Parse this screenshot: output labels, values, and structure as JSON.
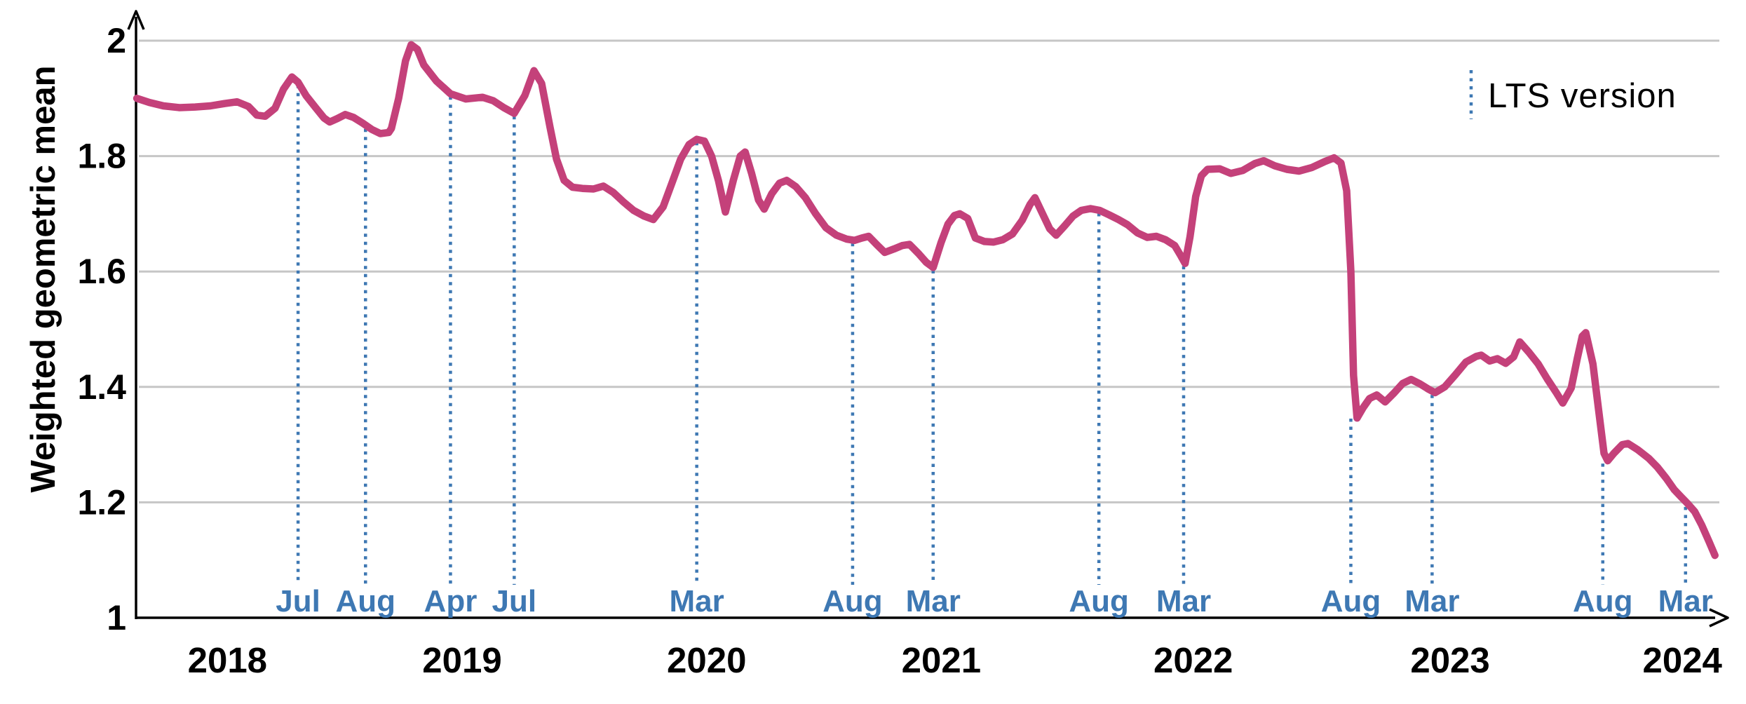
{
  "page": {
    "background": "#ffffff"
  },
  "colors": {
    "line": "#c4417a",
    "lts_blue": "#3e78b3",
    "grid": "#c6c6c6",
    "axis": "#000000",
    "text": "#000000"
  },
  "chart_data": {
    "type": "line",
    "title": "",
    "xlabel": "",
    "ylabel": "Weighted geometric mean",
    "xlim": [
      2017.93,
      2024.32
    ],
    "ylim": [
      1,
      2
    ],
    "grid": "horizontal-on",
    "legend": {
      "label": "LTS version",
      "position": "top-right"
    },
    "y_ticks": [
      {
        "label": "1",
        "value": 1.0
      },
      {
        "label": "1.2",
        "value": 1.2
      },
      {
        "label": "1.4",
        "value": 1.4
      },
      {
        "label": "1.6",
        "value": 1.6
      },
      {
        "label": "1.8",
        "value": 1.8
      },
      {
        "label": "2",
        "value": 2.0
      }
    ],
    "x_ticks": [
      {
        "label": "2018",
        "x": 2018.3
      },
      {
        "label": "2019",
        "x": 2019.25
      },
      {
        "label": "2020",
        "x": 2020.24
      },
      {
        "label": "2021",
        "x": 2021.19
      },
      {
        "label": "2022",
        "x": 2022.21
      },
      {
        "label": "2023",
        "x": 2023.25
      },
      {
        "label": "2024",
        "x": 2024.19
      }
    ],
    "lts_markers": {
      "color": "#3e78b3",
      "items": [
        {
          "label": "Jul",
          "x": 2018.586,
          "top": 1.928
        },
        {
          "label": "Aug",
          "x": 2018.859,
          "top": 1.852
        },
        {
          "label": "Apr",
          "x": 2019.203,
          "top": 1.908
        },
        {
          "label": "Jul",
          "x": 2019.461,
          "top": 1.874
        },
        {
          "label": "Mar",
          "x": 2020.2,
          "top": 1.829
        },
        {
          "label": "Aug",
          "x": 2020.831,
          "top": 1.654
        },
        {
          "label": "Mar",
          "x": 2021.157,
          "top": 1.607
        },
        {
          "label": "Aug",
          "x": 2021.828,
          "top": 1.706
        },
        {
          "label": "Mar",
          "x": 2022.171,
          "top": 1.614
        },
        {
          "label": "Aug",
          "x": 2022.848,
          "top": 1.35
        },
        {
          "label": "Mar",
          "x": 2023.177,
          "top": 1.391
        },
        {
          "label": "Aug",
          "x": 2023.868,
          "top": 1.272
        },
        {
          "label": "Mar",
          "x": 2024.203,
          "top": 1.197
        }
      ]
    },
    "series": [
      {
        "name": "Weighted geometric mean",
        "color": "#c4417a",
        "points": [
          [
            2017.933,
            1.9
          ],
          [
            2017.984,
            1.893
          ],
          [
            2018.041,
            1.887
          ],
          [
            2018.106,
            1.884
          ],
          [
            2018.169,
            1.885
          ],
          [
            2018.231,
            1.887
          ],
          [
            2018.288,
            1.891
          ],
          [
            2018.339,
            1.894
          ],
          [
            2018.385,
            1.886
          ],
          [
            2018.419,
            1.871
          ],
          [
            2018.453,
            1.869
          ],
          [
            2018.493,
            1.883
          ],
          [
            2018.527,
            1.916
          ],
          [
            2018.561,
            1.937
          ],
          [
            2018.586,
            1.928
          ],
          [
            2018.618,
            1.905
          ],
          [
            2018.657,
            1.884
          ],
          [
            2018.691,
            1.866
          ],
          [
            2018.714,
            1.859
          ],
          [
            2018.745,
            1.865
          ],
          [
            2018.777,
            1.872
          ],
          [
            2018.811,
            1.867
          ],
          [
            2018.848,
            1.857
          ],
          [
            2018.885,
            1.846
          ],
          [
            2018.919,
            1.839
          ],
          [
            2018.953,
            1.841
          ],
          [
            2018.964,
            1.848
          ],
          [
            2018.993,
            1.9
          ],
          [
            2019.021,
            1.965
          ],
          [
            2019.044,
            1.993
          ],
          [
            2019.069,
            1.985
          ],
          [
            2019.095,
            1.958
          ],
          [
            2019.146,
            1.93
          ],
          [
            2019.203,
            1.908
          ],
          [
            2019.265,
            1.899
          ],
          [
            2019.333,
            1.902
          ],
          [
            2019.376,
            1.896
          ],
          [
            2019.419,
            1.884
          ],
          [
            2019.461,
            1.874
          ],
          [
            2019.504,
            1.905
          ],
          [
            2019.541,
            1.948
          ],
          [
            2019.572,
            1.926
          ],
          [
            2019.606,
            1.85
          ],
          [
            2019.632,
            1.795
          ],
          [
            2019.663,
            1.758
          ],
          [
            2019.697,
            1.746
          ],
          [
            2019.737,
            1.744
          ],
          [
            2019.782,
            1.743
          ],
          [
            2019.822,
            1.748
          ],
          [
            2019.862,
            1.737
          ],
          [
            2019.902,
            1.721
          ],
          [
            2019.944,
            1.706
          ],
          [
            2019.987,
            1.696
          ],
          [
            2020.024,
            1.69
          ],
          [
            2020.064,
            1.712
          ],
          [
            2020.101,
            1.755
          ],
          [
            2020.135,
            1.795
          ],
          [
            2020.169,
            1.82
          ],
          [
            2020.2,
            1.829
          ],
          [
            2020.231,
            1.826
          ],
          [
            2020.26,
            1.8
          ],
          [
            2020.288,
            1.757
          ],
          [
            2020.316,
            1.703
          ],
          [
            2020.348,
            1.758
          ],
          [
            2020.376,
            1.8
          ],
          [
            2020.396,
            1.807
          ],
          [
            2020.422,
            1.77
          ],
          [
            2020.45,
            1.724
          ],
          [
            2020.473,
            1.708
          ],
          [
            2020.504,
            1.735
          ],
          [
            2020.535,
            1.753
          ],
          [
            2020.564,
            1.758
          ],
          [
            2020.601,
            1.747
          ],
          [
            2020.64,
            1.728
          ],
          [
            2020.68,
            1.701
          ],
          [
            2020.723,
            1.676
          ],
          [
            2020.765,
            1.663
          ],
          [
            2020.808,
            1.656
          ],
          [
            2020.839,
            1.654
          ],
          [
            2020.868,
            1.658
          ],
          [
            2020.896,
            1.661
          ],
          [
            2020.93,
            1.646
          ],
          [
            2020.961,
            1.633
          ],
          [
            2020.998,
            1.639
          ],
          [
            2021.032,
            1.645
          ],
          [
            2021.061,
            1.647
          ],
          [
            2021.098,
            1.631
          ],
          [
            2021.129,
            1.616
          ],
          [
            2021.157,
            1.607
          ],
          [
            2021.189,
            1.65
          ],
          [
            2021.217,
            1.682
          ],
          [
            2021.243,
            1.697
          ],
          [
            2021.265,
            1.7
          ],
          [
            2021.297,
            1.692
          ],
          [
            2021.328,
            1.658
          ],
          [
            2021.365,
            1.652
          ],
          [
            2021.402,
            1.651
          ],
          [
            2021.439,
            1.655
          ],
          [
            2021.478,
            1.665
          ],
          [
            2021.518,
            1.689
          ],
          [
            2021.549,
            1.716
          ],
          [
            2021.569,
            1.728
          ],
          [
            2021.6,
            1.7
          ],
          [
            2021.629,
            1.674
          ],
          [
            2021.655,
            1.663
          ],
          [
            2021.689,
            1.679
          ],
          [
            2021.723,
            1.696
          ],
          [
            2021.757,
            1.706
          ],
          [
            2021.794,
            1.709
          ],
          [
            2021.831,
            1.706
          ],
          [
            2021.87,
            1.698
          ],
          [
            2021.907,
            1.69
          ],
          [
            2021.944,
            1.681
          ],
          [
            2021.984,
            1.667
          ],
          [
            2022.024,
            1.659
          ],
          [
            2022.061,
            1.661
          ],
          [
            2022.098,
            1.655
          ],
          [
            2022.135,
            1.645
          ],
          [
            2022.16,
            1.627
          ],
          [
            2022.177,
            1.614
          ],
          [
            2022.197,
            1.66
          ],
          [
            2022.22,
            1.73
          ],
          [
            2022.243,
            1.766
          ],
          [
            2022.268,
            1.777
          ],
          [
            2022.317,
            1.778
          ],
          [
            2022.362,
            1.77
          ],
          [
            2022.41,
            1.775
          ],
          [
            2022.459,
            1.787
          ],
          [
            2022.495,
            1.792
          ],
          [
            2022.541,
            1.783
          ],
          [
            2022.589,
            1.777
          ],
          [
            2022.638,
            1.774
          ],
          [
            2022.689,
            1.78
          ],
          [
            2022.74,
            1.79
          ],
          [
            2022.78,
            1.797
          ],
          [
            2022.808,
            1.788
          ],
          [
            2022.831,
            1.74
          ],
          [
            2022.848,
            1.6
          ],
          [
            2022.859,
            1.42
          ],
          [
            2022.873,
            1.346
          ],
          [
            2022.896,
            1.363
          ],
          [
            2022.924,
            1.38
          ],
          [
            2022.953,
            1.386
          ],
          [
            2022.987,
            1.374
          ],
          [
            2023.024,
            1.39
          ],
          [
            2023.058,
            1.406
          ],
          [
            2023.092,
            1.413
          ],
          [
            2023.129,
            1.405
          ],
          [
            2023.163,
            1.396
          ],
          [
            2023.189,
            1.39
          ],
          [
            2023.228,
            1.4
          ],
          [
            2023.271,
            1.421
          ],
          [
            2023.314,
            1.443
          ],
          [
            2023.356,
            1.453
          ],
          [
            2023.376,
            1.455
          ],
          [
            2023.41,
            1.445
          ],
          [
            2023.441,
            1.449
          ],
          [
            2023.475,
            1.441
          ],
          [
            2023.507,
            1.452
          ],
          [
            2023.532,
            1.478
          ],
          [
            2023.569,
            1.46
          ],
          [
            2023.606,
            1.44
          ],
          [
            2023.643,
            1.414
          ],
          [
            2023.68,
            1.39
          ],
          [
            2023.706,
            1.372
          ],
          [
            2023.74,
            1.398
          ],
          [
            2023.765,
            1.45
          ],
          [
            2023.785,
            1.488
          ],
          [
            2023.799,
            1.494
          ],
          [
            2023.828,
            1.44
          ],
          [
            2023.851,
            1.36
          ],
          [
            2023.873,
            1.285
          ],
          [
            2023.888,
            1.272
          ],
          [
            2023.913,
            1.285
          ],
          [
            2023.947,
            1.3
          ],
          [
            2023.97,
            1.302
          ],
          [
            2024.01,
            1.291
          ],
          [
            2024.055,
            1.276
          ],
          [
            2024.089,
            1.261
          ],
          [
            2024.126,
            1.241
          ],
          [
            2024.157,
            1.222
          ],
          [
            2024.186,
            1.209
          ],
          [
            2024.211,
            1.198
          ],
          [
            2024.24,
            1.184
          ],
          [
            2024.268,
            1.161
          ],
          [
            2024.297,
            1.133
          ],
          [
            2024.322,
            1.108
          ]
        ]
      }
    ]
  }
}
